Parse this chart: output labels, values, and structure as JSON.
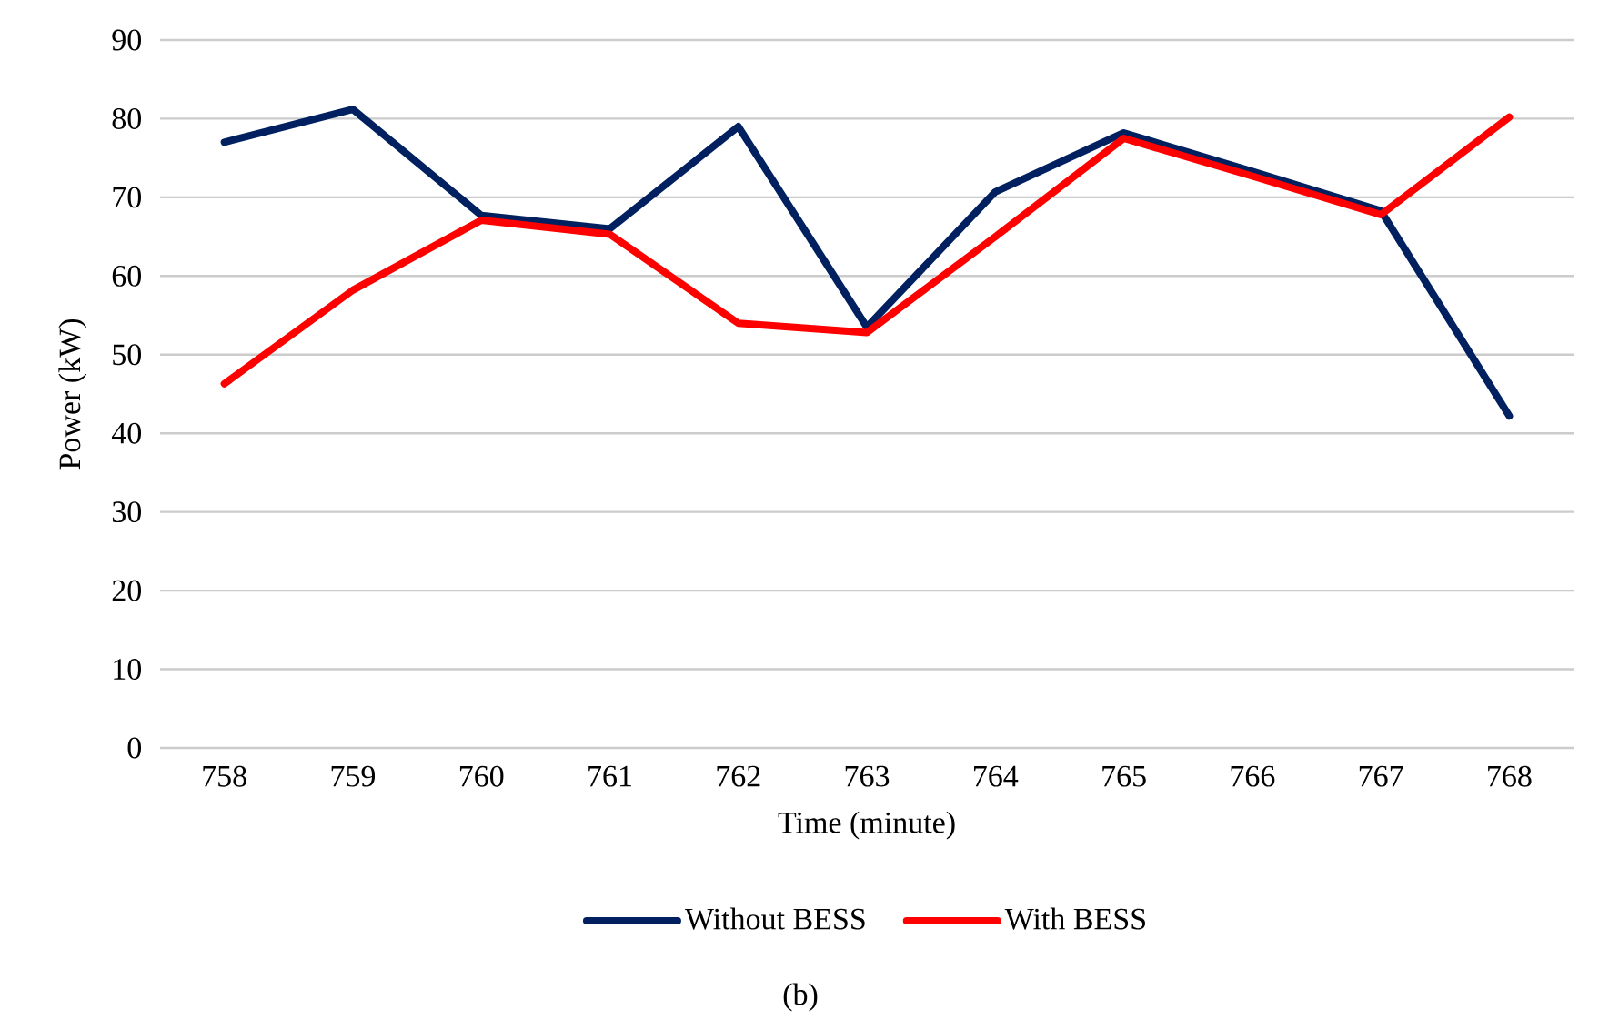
{
  "chart_data": {
    "type": "line",
    "xlabel": "Time (minute)",
    "ylabel": "Power (kW)",
    "categories": [
      "758",
      "759",
      "760",
      "761",
      "762",
      "763",
      "764",
      "765",
      "766",
      "767",
      "768"
    ],
    "series": [
      {
        "name": "Without BESS",
        "color": "#002060",
        "values": [
          77,
          81.2,
          67.7,
          66,
          79,
          53.5,
          70.7,
          78.2,
          73.3,
          68.3,
          42.2
        ]
      },
      {
        "name": "With BESS",
        "color": "#ff0000",
        "values": [
          46.3,
          58.2,
          67.1,
          65.3,
          54,
          52.8,
          65,
          77.5,
          72.7,
          67.8,
          80.2
        ]
      }
    ],
    "ylim": [
      0,
      90
    ],
    "yticks": [
      0,
      10,
      20,
      30,
      40,
      50,
      60,
      70,
      80,
      90
    ],
    "grid": "y",
    "legend": "bottom",
    "marker": "none",
    "line_style": "solid",
    "annotations": [
      "(b)"
    ]
  }
}
